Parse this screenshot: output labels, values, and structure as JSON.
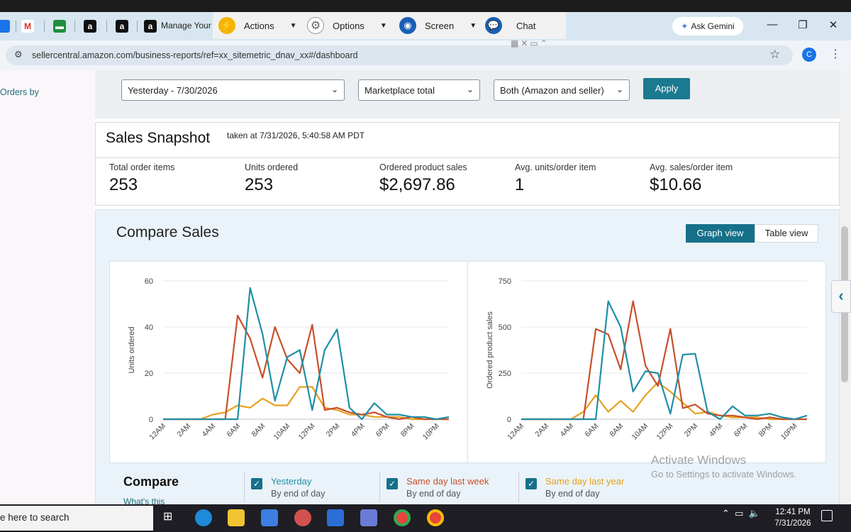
{
  "browser": {
    "tabs": {
      "manage_label": "Manage Your I"
    },
    "remote_toolbar": {
      "actions": "Actions",
      "options": "Options",
      "screen": "Screen",
      "chat": "Chat"
    },
    "ask_gemini": "Ask Gemini",
    "url": "sellercentral.amazon.com/business-reports/ref=xx_sitemetric_dnav_xx#/dashboard",
    "profile_initial": "C"
  },
  "sidebar": {
    "orders_by": "Orders by"
  },
  "filters": {
    "date_value": "Yesterday - 7/30/2026",
    "sales_breakdown_value": "Marketplace total",
    "fulfillment_value": "Both (Amazon and seller)",
    "apply_label": "Apply"
  },
  "snapshot": {
    "title": "Sales Snapshot",
    "taken": "taken at 7/31/2026, 5:40:58 AM PDT",
    "metrics": [
      {
        "label": "Total order items",
        "value": "253"
      },
      {
        "label": "Units ordered",
        "value": "253"
      },
      {
        "label": "Ordered product sales",
        "value": "$2,697.86"
      },
      {
        "label": "Avg. units/order item",
        "value": "1"
      },
      {
        "label": "Avg. sales/order item",
        "value": "$10.66"
      }
    ]
  },
  "compare_sales": {
    "title": "Compare Sales",
    "graph_view": "Graph view",
    "table_view": "Table view",
    "compare_label": "Compare",
    "whats_this": "What's this",
    "items": [
      {
        "title": "Yesterday",
        "sub": "By end of day",
        "color": "#1f8fa6"
      },
      {
        "title": "Same day last week",
        "sub": "By end of day",
        "color": "#c8502a"
      },
      {
        "title": "Same day last year",
        "sub": "By end of day",
        "color": "#e6a020"
      }
    ]
  },
  "watermark": {
    "line1": "Activate Windows",
    "line2": "Go to Settings to activate Windows."
  },
  "taskbar": {
    "search": "e here to search",
    "time": "12:41 PM",
    "date": "7/31/2026"
  },
  "chart_data": [
    {
      "type": "line",
      "ylabel": "Units ordered",
      "ylim": [
        0,
        60
      ],
      "yticks": [
        0,
        20,
        40,
        60
      ],
      "x": [
        "12AM",
        "1AM",
        "2AM",
        "3AM",
        "4AM",
        "5AM",
        "6AM",
        "7AM",
        "8AM",
        "9AM",
        "10AM",
        "11AM",
        "12PM",
        "1PM",
        "2PM",
        "3PM",
        "4PM",
        "5PM",
        "6PM",
        "7PM",
        "8PM",
        "9PM",
        "10PM",
        "11PM"
      ],
      "xticks": [
        "12AM",
        "2AM",
        "4AM",
        "6AM",
        "8AM",
        "10AM",
        "12PM",
        "2PM",
        "4PM",
        "6PM",
        "8PM",
        "10PM"
      ],
      "series": [
        {
          "color": "#1f8fa6",
          "values": [
            0,
            0,
            0,
            0,
            0,
            0,
            0,
            57,
            37,
            8,
            27,
            30,
            4,
            30,
            39,
            5,
            0,
            7,
            2,
            2,
            1,
            1,
            0,
            1
          ]
        },
        {
          "color": "#c8502a",
          "values": [
            0,
            0,
            0,
            0,
            0,
            0,
            45,
            35,
            18,
            40,
            26,
            20,
            41,
            4,
            5,
            3,
            2,
            3,
            1,
            0,
            1,
            0,
            0,
            0
          ]
        },
        {
          "color": "#e6a020",
          "values": [
            0,
            0,
            0,
            0,
            2,
            3,
            6,
            5,
            9,
            6,
            6,
            14,
            14,
            5,
            4,
            2,
            2,
            1,
            1,
            1,
            0,
            0,
            0,
            0
          ]
        }
      ]
    },
    {
      "type": "line",
      "ylabel": "Ordered product sales",
      "ylim": [
        0,
        750
      ],
      "yticks": [
        0,
        250,
        500,
        750
      ],
      "x": [
        "12AM",
        "1AM",
        "2AM",
        "3AM",
        "4AM",
        "5AM",
        "6AM",
        "7AM",
        "8AM",
        "9AM",
        "10AM",
        "11AM",
        "12PM",
        "1PM",
        "2PM",
        "3PM",
        "4PM",
        "5PM",
        "6PM",
        "7PM",
        "8PM",
        "9PM",
        "10PM",
        "11PM"
      ],
      "xticks": [
        "12AM",
        "2AM",
        "4AM",
        "6AM",
        "8AM",
        "10AM",
        "12PM",
        "2PM",
        "4PM",
        "6PM",
        "8PM",
        "10PM"
      ],
      "series": [
        {
          "color": "#1f8fa6",
          "values": [
            0,
            0,
            0,
            0,
            0,
            0,
            0,
            640,
            500,
            150,
            260,
            250,
            30,
            350,
            355,
            40,
            0,
            70,
            20,
            20,
            30,
            10,
            0,
            20
          ]
        },
        {
          "color": "#c8502a",
          "values": [
            0,
            0,
            0,
            0,
            0,
            0,
            490,
            460,
            270,
            640,
            290,
            180,
            490,
            60,
            80,
            30,
            20,
            20,
            10,
            0,
            10,
            0,
            0,
            0
          ]
        },
        {
          "color": "#e6a020",
          "values": [
            0,
            0,
            0,
            0,
            0,
            40,
            130,
            40,
            100,
            40,
            130,
            200,
            150,
            90,
            30,
            40,
            20,
            10,
            10,
            10,
            0,
            0,
            0,
            0
          ]
        }
      ]
    }
  ]
}
